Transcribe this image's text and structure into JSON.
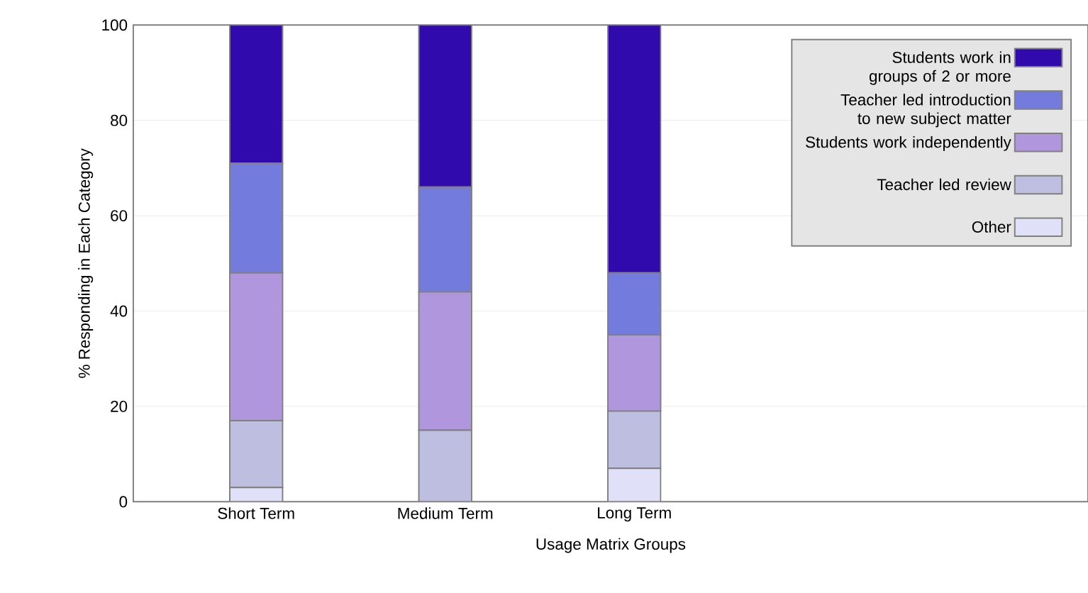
{
  "chart_data": {
    "type": "bar",
    "stacked": true,
    "xlabel": "Usage Matrix Groups",
    "ylabel": "% Responding in Each Category",
    "categories": [
      "Short Term",
      "Medium Term",
      "Long Term"
    ],
    "series": [
      {
        "name": "Other",
        "color": "#e0e0f8",
        "values": [
          3,
          0,
          7
        ]
      },
      {
        "name": "Teacher led review",
        "color": "#bebee0",
        "values": [
          14,
          15,
          12
        ]
      },
      {
        "name": "Students work independently",
        "color": "#b096dc",
        "values": [
          31,
          29,
          16
        ]
      },
      {
        "name": "Teacher led introduction to new subject matter",
        "color": "#737bdc",
        "values": [
          23,
          22,
          13
        ]
      },
      {
        "name": "Students work in groups of 2 or more",
        "color": "#310aae",
        "values": [
          29,
          34,
          52
        ]
      }
    ],
    "ylim": [
      0,
      100
    ],
    "yticks": [
      0,
      20,
      40,
      60,
      80,
      100
    ],
    "grid": "y",
    "legend": "top right"
  }
}
